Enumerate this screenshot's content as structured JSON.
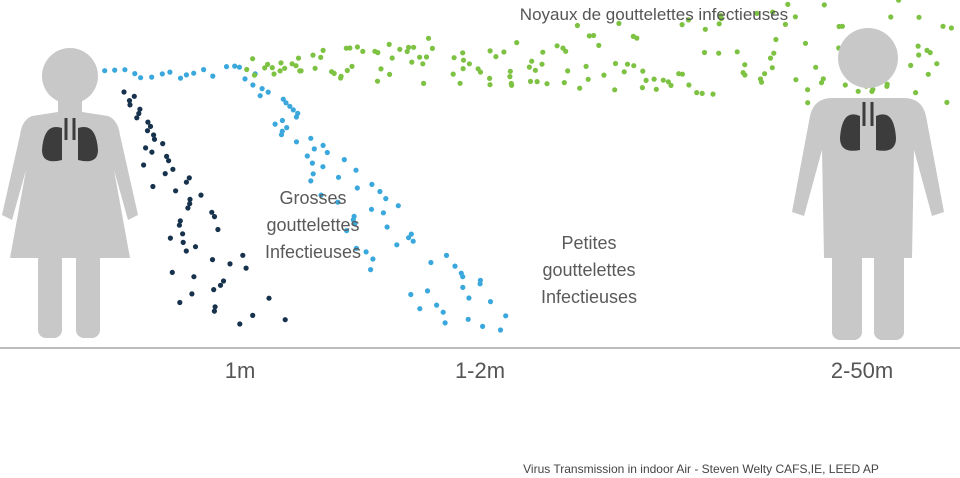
{
  "title": "Noyaux de gouttelettes infectieuses",
  "large_droplets": [
    "Grosses",
    "gouttelettes",
    "Infectieuses"
  ],
  "small_droplets": [
    "Petites",
    "gouttelettes",
    "Infectieuses"
  ],
  "distances": [
    "1m",
    "1-2m",
    "2-50m"
  ],
  "credit": "Virus Transmission in indoor Air - Steven Welty CAFS,IE, LEED AP"
}
